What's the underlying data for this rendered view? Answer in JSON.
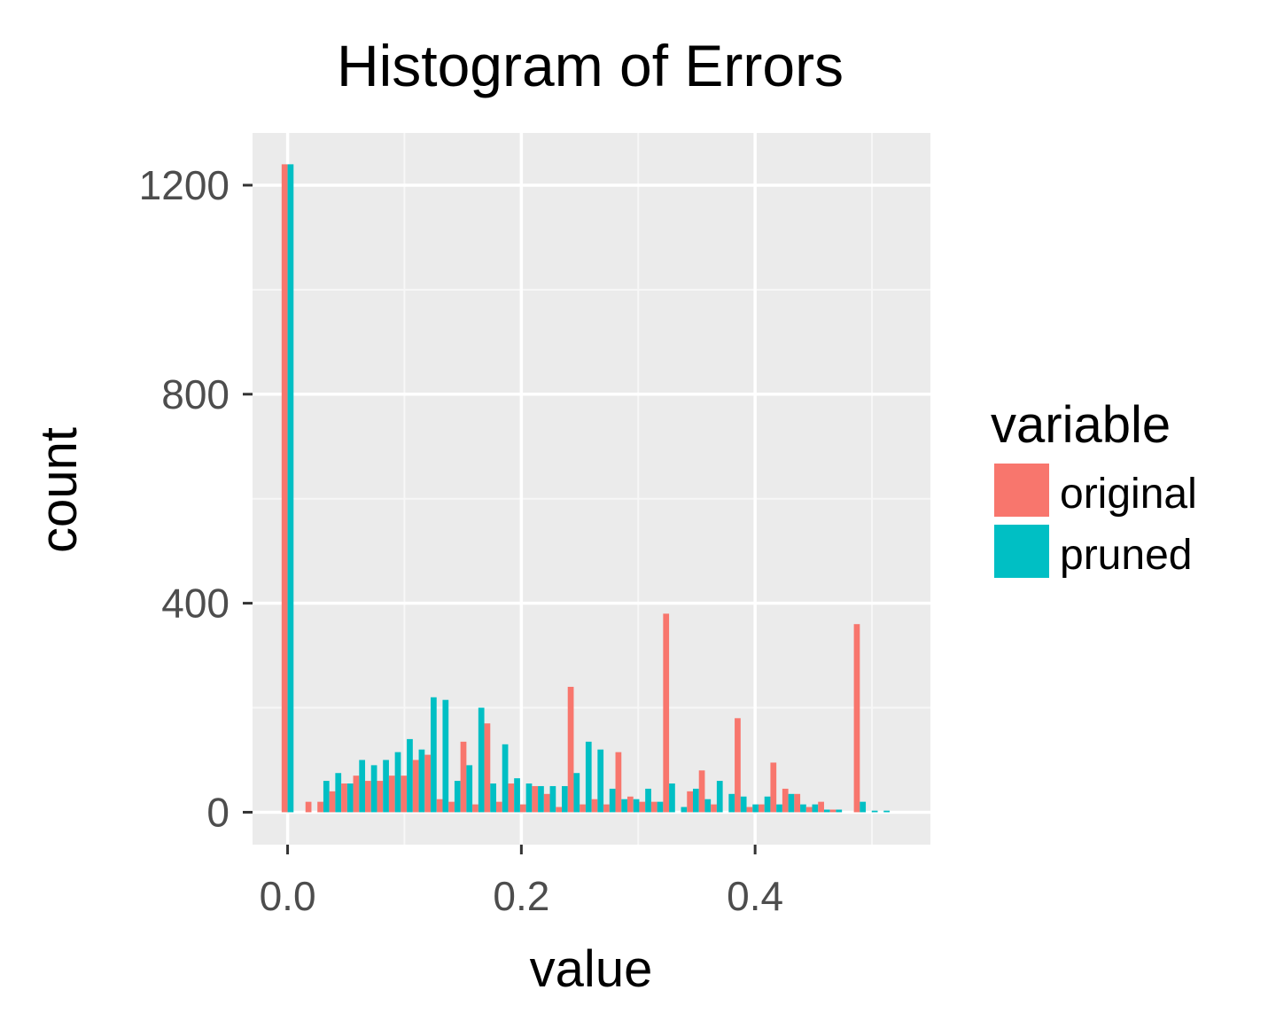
{
  "chart_data": {
    "type": "bar",
    "title": "Histogram of Errors",
    "xlabel": "value",
    "ylabel": "count",
    "xlim": [
      -0.03,
      0.55
    ],
    "ylim": [
      -62,
      1300
    ],
    "bin_width": 0.0102,
    "x_ticks": [
      0.0,
      0.2,
      0.4
    ],
    "x_tick_labels": [
      "0.0",
      "0.2",
      "0.4"
    ],
    "x_minor": [
      0.1,
      0.3,
      0.5
    ],
    "y_ticks": [
      0,
      400,
      800,
      1200
    ],
    "y_tick_labels": [
      "0",
      "400",
      "800",
      "1200"
    ],
    "y_minor": [
      200,
      600,
      1000
    ],
    "grid": true,
    "legend": {
      "title": "variable",
      "position": "right",
      "entries": [
        "original",
        "pruned"
      ]
    },
    "x": [
      0.0,
      0.0102,
      0.0204,
      0.0306,
      0.0408,
      0.051,
      0.0612,
      0.0714,
      0.0816,
      0.0918,
      0.102,
      0.1122,
      0.1224,
      0.1326,
      0.1428,
      0.153,
      0.1632,
      0.1734,
      0.1836,
      0.1938,
      0.204,
      0.2142,
      0.2244,
      0.2346,
      0.2448,
      0.255,
      0.2652,
      0.2754,
      0.2856,
      0.2958,
      0.306,
      0.3162,
      0.3264,
      0.3366,
      0.3468,
      0.357,
      0.3672,
      0.3774,
      0.3876,
      0.3978,
      0.408,
      0.4182,
      0.4284,
      0.4386,
      0.4488,
      0.459,
      0.4692,
      0.4794,
      0.4896,
      0.4998,
      0.51
    ],
    "series": [
      {
        "name": "original",
        "color": "#F8766D",
        "values": [
          1240,
          0,
          20,
          20,
          40,
          55,
          70,
          60,
          60,
          70,
          70,
          100,
          110,
          25,
          20,
          135,
          15,
          170,
          20,
          55,
          15,
          50,
          35,
          10,
          240,
          15,
          25,
          15,
          115,
          30,
          20,
          20,
          380,
          0,
          40,
          80,
          15,
          0,
          180,
          10,
          15,
          95,
          45,
          35,
          10,
          20,
          5,
          0,
          360,
          0,
          0
        ]
      },
      {
        "name": "pruned",
        "color": "#00BFC4",
        "values": [
          1240,
          0,
          0,
          60,
          75,
          55,
          100,
          90,
          100,
          115,
          140,
          120,
          220,
          215,
          60,
          90,
          200,
          55,
          130,
          65,
          55,
          50,
          50,
          50,
          75,
          135,
          120,
          45,
          25,
          25,
          45,
          20,
          55,
          10,
          45,
          25,
          60,
          35,
          30,
          15,
          30,
          15,
          35,
          15,
          15,
          5,
          5,
          0,
          20,
          3,
          3
        ]
      }
    ]
  }
}
